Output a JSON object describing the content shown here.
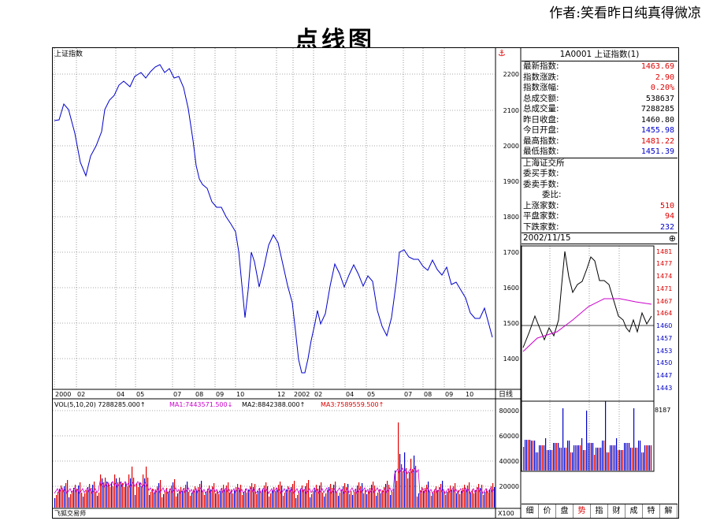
{
  "author": "作者:笑看昨日纯真得微凉",
  "slide_title": "点线图",
  "main_chart": {
    "name": "上证指数",
    "anchor_icon": "anchor-icon",
    "y_ticks": [
      "2200",
      "2100",
      "2000",
      "1900",
      "1800",
      "1700",
      "1600",
      "1500",
      "1400"
    ],
    "x_labels": [
      "2000",
      "02",
      "04",
      "05",
      "07",
      "08",
      "09",
      "10",
      "12",
      "2002",
      "02",
      "04",
      "05",
      "07",
      "08",
      "09",
      "10"
    ],
    "period": "日线"
  },
  "vol_chart": {
    "legend": {
      "vol": "VOL(5,10,20) 7288285.000↑",
      "ma1": "MA1:7443571.500↓",
      "ma2": "MA2:8842388.000↑",
      "ma3": "MA3:7589559.500↑"
    },
    "y_ticks": [
      "80000",
      "60000",
      "40000",
      "20000"
    ],
    "footer": "飞狐交易师",
    "unit": "X100"
  },
  "quote_panel": {
    "title": "1A0001 上证指数(1)",
    "rows": [
      {
        "label": "最新指数:",
        "value": "1463.69",
        "color": "red"
      },
      {
        "label": "指数涨跌:",
        "value": "2.90",
        "color": "red"
      },
      {
        "label": "指数涨幅:",
        "value": "0.20%",
        "color": "red"
      },
      {
        "label": "总成交额:",
        "value": "538637",
        "color": "black"
      },
      {
        "label": "总成交量:",
        "value": "7288285",
        "color": "black"
      },
      {
        "label": "昨日收盘:",
        "value": "1460.80",
        "color": "black"
      },
      {
        "label": "今日开盘:",
        "value": "1455.98",
        "color": "blue"
      },
      {
        "label": "最高指数:",
        "value": "1481.22",
        "color": "red"
      },
      {
        "label": "最低指数:",
        "value": "1451.39",
        "color": "blue"
      }
    ],
    "exchange": "上海证交所",
    "bid_rows": [
      {
        "label": "委买手数:",
        "value": ""
      },
      {
        "label": "委卖手数:",
        "value": ""
      },
      {
        "label": "委比:",
        "value": ""
      }
    ],
    "breadth_rows": [
      {
        "label": "上涨家数:",
        "value": "510",
        "color": "red"
      },
      {
        "label": "平盘家数:",
        "value": "94",
        "color": "red"
      },
      {
        "label": "下跌家数:",
        "value": "232",
        "color": "blue"
      }
    ],
    "date": "2002/11/15"
  },
  "intraday": {
    "y_ticks": [
      "1481",
      "1477",
      "1474",
      "1471",
      "1467",
      "1464",
      "1460",
      "1457",
      "1453",
      "1450",
      "1447",
      "1443"
    ],
    "vol_label": "8187"
  },
  "tabs": [
    "细",
    "价",
    "盘",
    "势",
    "指",
    "财",
    "成",
    "特",
    "解"
  ],
  "active_tab": "势",
  "colors": {
    "price_line": "#0000cc",
    "vol_up": "#e00000",
    "vol_down": "#0000cc",
    "ma": "#cc00cc",
    "grid": "#000000"
  }
}
